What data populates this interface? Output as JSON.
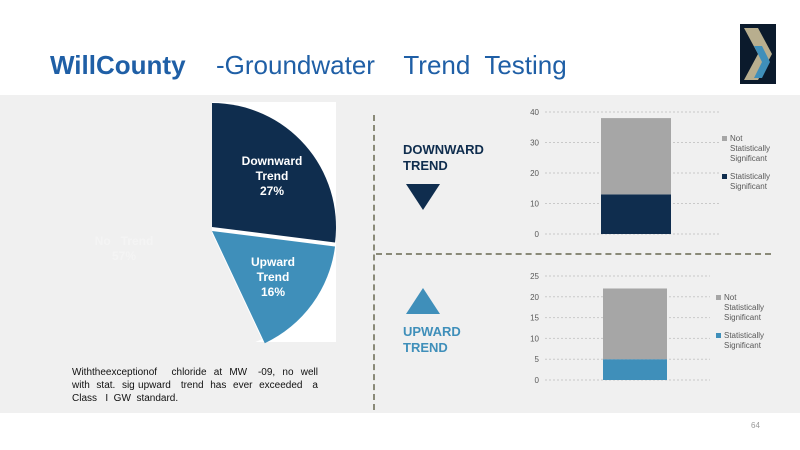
{
  "header": {
    "title_main": "WillCounty",
    "title_sub": "-Groundwater    Trend  Testing"
  },
  "colors": {
    "title": "#1f5fa6",
    "down": "#0f2d4e",
    "up": "#3f8fba",
    "not_significant": "#a6a6a6",
    "no_trend": "#f0f0f0"
  },
  "chart_data": [
    {
      "type": "pie",
      "slices": [
        {
          "name": "Downward Trend",
          "label_lines": [
            "Downward",
            "Trend",
            "27%"
          ],
          "value": 27,
          "color": "#0f2d4e"
        },
        {
          "name": "Upward Trend",
          "label_lines": [
            "Upward",
            "Trend",
            "16%"
          ],
          "value": 16,
          "color": "#3f8fba"
        },
        {
          "name": "No Trend",
          "label_lines": [
            "No   Trend",
            "57%"
          ],
          "value": 57,
          "color": "#f0f0f0"
        }
      ]
    },
    {
      "type": "bar",
      "stacked": true,
      "group": "DOWNWARD TREND",
      "categories": [
        ""
      ],
      "series": [
        {
          "name": "Statistically Significant",
          "legend_lines": [
            "Statistically",
            "Significant"
          ],
          "values": [
            13
          ],
          "color": "#0f2d4e"
        },
        {
          "name": "Not Statistically Significant",
          "legend_lines": [
            "Not",
            "Statistically",
            "Significant"
          ],
          "values": [
            25
          ],
          "color": "#a6a6a6"
        }
      ],
      "ylim": [
        0,
        40
      ],
      "yticks": [
        0,
        10,
        20,
        30,
        40
      ],
      "grid": true,
      "legend": "right"
    },
    {
      "type": "bar",
      "stacked": true,
      "group": "UPWARD TREND",
      "categories": [
        ""
      ],
      "series": [
        {
          "name": "Statistically Significant",
          "legend_lines": [
            "Statistically",
            "Significant"
          ],
          "values": [
            5
          ],
          "color": "#3f8fba"
        },
        {
          "name": "Not Statistically Significant",
          "legend_lines": [
            "Not",
            "Statistically",
            "Significant"
          ],
          "values": [
            17
          ],
          "color": "#a6a6a6"
        }
      ],
      "ylim": [
        0,
        25
      ],
      "yticks": [
        0,
        5,
        10,
        15,
        20,
        25
      ],
      "grid": true,
      "legend": "right"
    }
  ],
  "trend_labels": {
    "down": [
      "DOWNWARD",
      "TREND"
    ],
    "up": [
      "UPWARD",
      "TREND"
    ]
  },
  "note": "Withtheexceptionof    chloride  at  MW   -09,  no  well with  stat.  sig upward   trend  has  ever  exceeded   a Class   I  GW  standard.",
  "page_number": "64"
}
